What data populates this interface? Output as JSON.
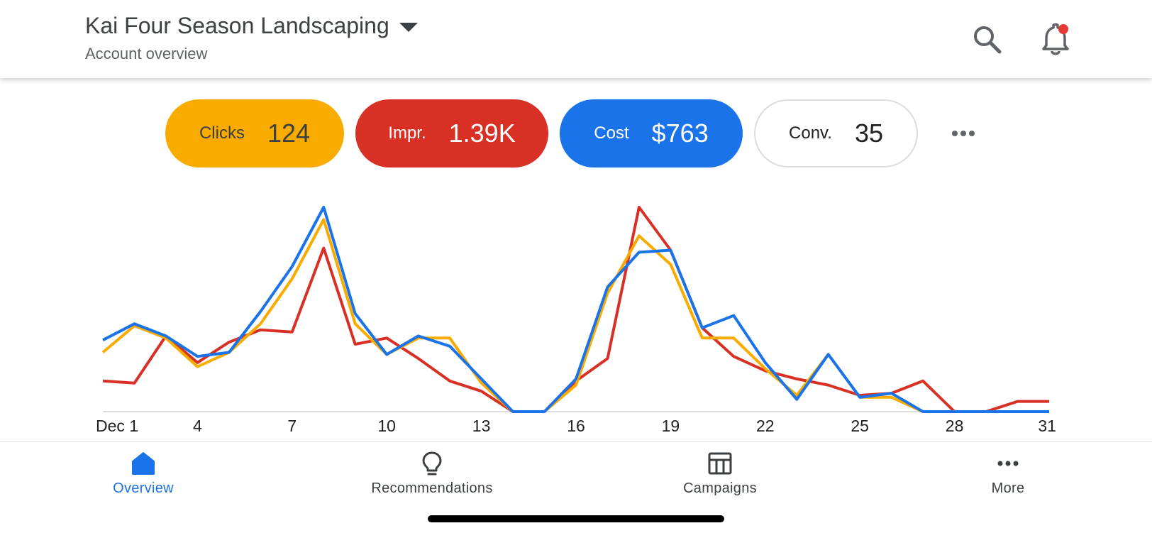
{
  "header": {
    "account_name": "Kai Four Season Landscaping",
    "subtitle": "Account overview"
  },
  "metrics": [
    {
      "label": "Clicks",
      "value": "124",
      "color": "#f9ab00"
    },
    {
      "label": "Impr.",
      "value": "1.39K",
      "color": "#d93025"
    },
    {
      "label": "Cost",
      "value": "$763",
      "color": "#1a73e8"
    },
    {
      "label": "Conv.",
      "value": "35",
      "color": "#ffffff"
    }
  ],
  "icons": {
    "search": "search-icon",
    "notifications": "bell-icon",
    "more_metrics": "more-horiz-icon",
    "notification_dot_color": "#e53935"
  },
  "chart_data": {
    "type": "line",
    "x": [
      1,
      2,
      3,
      4,
      5,
      6,
      7,
      8,
      9,
      10,
      11,
      12,
      13,
      14,
      15,
      16,
      17,
      18,
      19,
      20,
      21,
      22,
      23,
      24,
      25,
      26,
      27,
      28,
      29,
      30,
      31
    ],
    "tick_labels": [
      {
        "x": 1,
        "label": "Dec 1"
      },
      {
        "x": 4,
        "label": "4"
      },
      {
        "x": 7,
        "label": "7"
      },
      {
        "x": 10,
        "label": "10"
      },
      {
        "x": 13,
        "label": "13"
      },
      {
        "x": 16,
        "label": "16"
      },
      {
        "x": 19,
        "label": "19"
      },
      {
        "x": 22,
        "label": "22"
      },
      {
        "x": 25,
        "label": "25"
      },
      {
        "x": 28,
        "label": "28"
      },
      {
        "x": 31,
        "label": "31"
      }
    ],
    "ylim": [
      0,
      1
    ],
    "grid": false,
    "series": [
      {
        "color": "#d93025",
        "values": [
          0.15,
          0.14,
          0.37,
          0.24,
          0.34,
          0.4,
          0.39,
          0.8,
          0.33,
          0.36,
          0.26,
          0.15,
          0.1,
          0,
          0,
          0.15,
          0.26,
          1.0,
          0.79,
          0.41,
          0.27,
          0.2,
          0.16,
          0.13,
          0.08,
          0.09,
          0.15,
          0,
          0,
          0.05,
          0.05
        ]
      },
      {
        "color": "#f9ab00",
        "values": [
          0.29,
          0.42,
          0.36,
          0.22,
          0.29,
          0.43,
          0.65,
          0.94,
          0.43,
          0.28,
          0.36,
          0.36,
          0.14,
          0,
          0,
          0.13,
          0.58,
          0.86,
          0.72,
          0.36,
          0.36,
          0.21,
          0.08,
          0.28,
          0.07,
          0.07,
          0,
          0,
          0,
          0,
          0
        ]
      },
      {
        "color": "#1a73e8",
        "values": [
          0.35,
          0.43,
          0.37,
          0.27,
          0.29,
          0.49,
          0.71,
          1.0,
          0.48,
          0.28,
          0.37,
          0.32,
          0.16,
          0,
          0,
          0.16,
          0.61,
          0.78,
          0.79,
          0.41,
          0.47,
          0.24,
          0.06,
          0.28,
          0.07,
          0.09,
          0,
          0,
          0,
          0,
          0
        ]
      }
    ]
  },
  "nav": [
    {
      "label": "Overview",
      "icon": "home-icon",
      "active": true
    },
    {
      "label": "Recommendations",
      "icon": "lightbulb-icon",
      "active": false
    },
    {
      "label": "Campaigns",
      "icon": "table-icon",
      "active": false
    },
    {
      "label": "More",
      "icon": "more-horiz-icon",
      "active": false
    }
  ]
}
